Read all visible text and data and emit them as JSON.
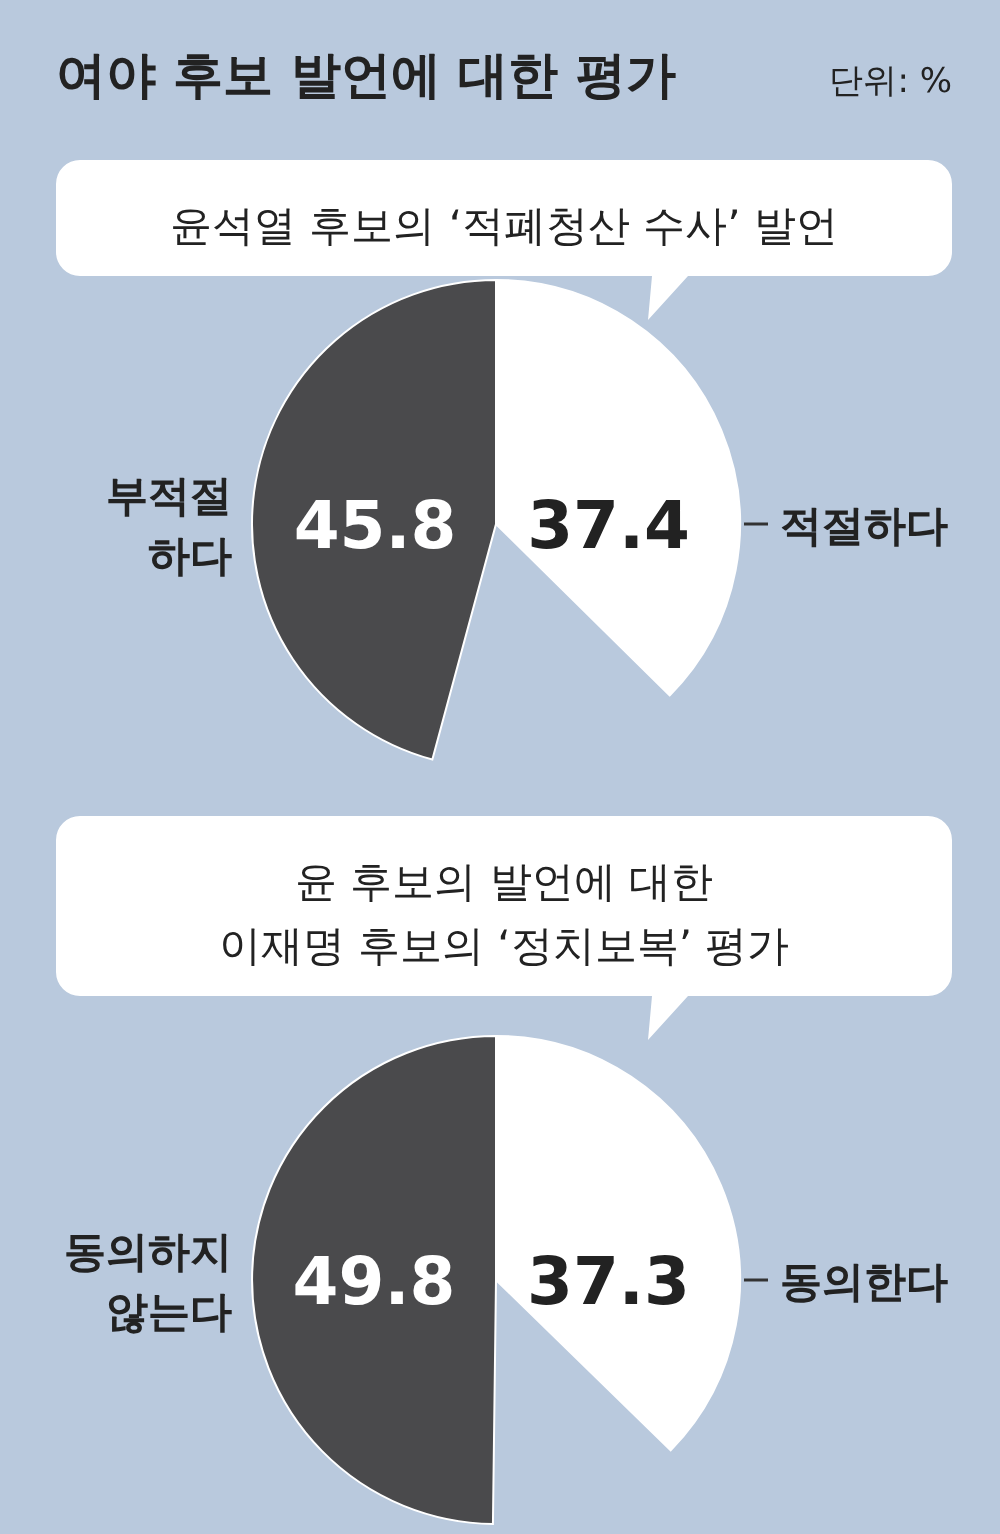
{
  "chart_data": [
    {
      "type": "pie",
      "title": "여야 후보 발언에 대한 평가",
      "annotations": [
        "단위: %"
      ],
      "subtitle": "윤석열 후보의 ‘적폐청산 수사’ 발언",
      "categories": [
        "적절하다",
        "부적절 하다"
      ],
      "values": [
        37.4,
        45.8
      ],
      "colors": [
        "#ffffff",
        "#4a4a4c"
      ],
      "data_labels": true
    },
    {
      "type": "pie",
      "subtitle": "윤 후보의 발언에 대한\n이재명 후보의 ‘정치보복’ 평가",
      "categories": [
        "동의한다",
        "동의하지 않는다"
      ],
      "values": [
        37.3,
        49.8
      ],
      "colors": [
        "#ffffff",
        "#4a4a4c"
      ],
      "data_labels": true
    }
  ]
}
